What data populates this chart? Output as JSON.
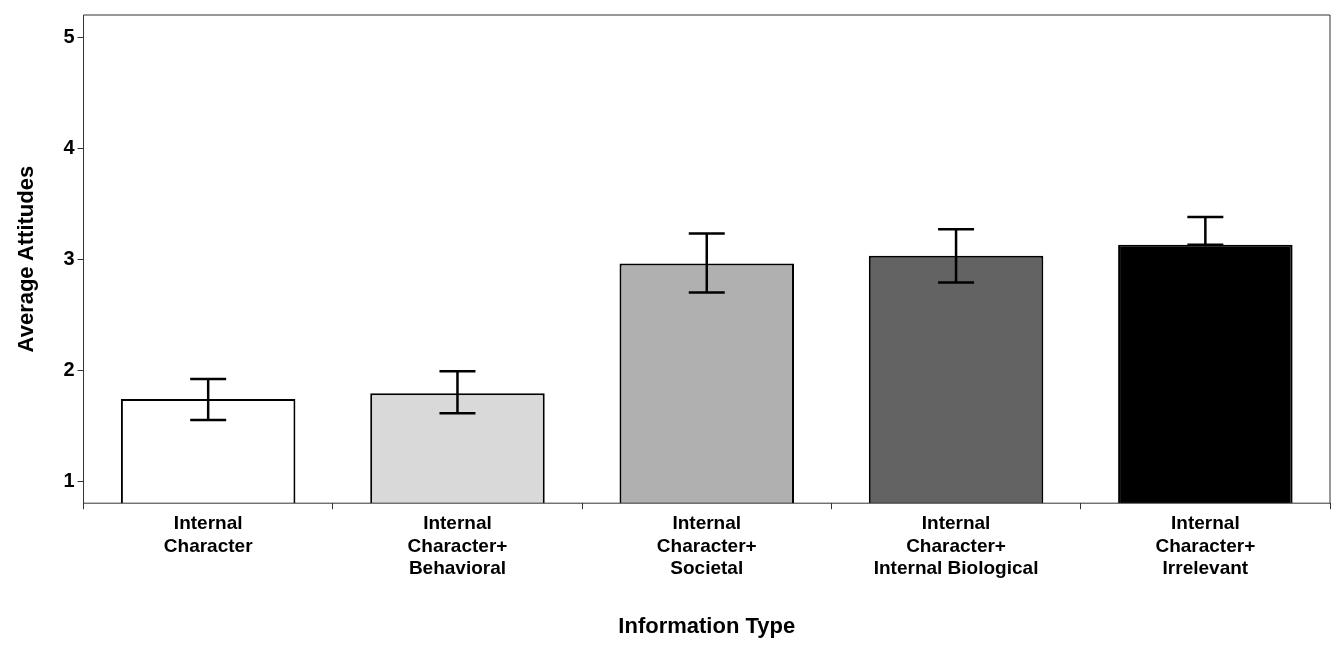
{
  "chart_data": {
    "type": "bar",
    "xlabel": "Information Type",
    "ylabel": "Average Attitudes",
    "categories": [
      "Internal\nCharacter",
      "Internal\nCharacter+\nBehavioral",
      "Internal\nCharacter+\nSocietal",
      "Internal\nCharacter+\nInternal Biological",
      "Internal\nCharacter+\nIrrelevant"
    ],
    "values": [
      1.74,
      1.79,
      2.96,
      3.03,
      3.13
    ],
    "colors": [
      "#ffffff",
      "#d9d9d9",
      "#b0b0b0",
      "#636363",
      "#000000"
    ],
    "errors": [
      [
        1.55,
        1.92
      ],
      [
        1.61,
        1.99
      ],
      [
        2.7,
        3.23
      ],
      [
        2.79,
        3.27
      ],
      [
        3.13,
        3.38
      ]
    ],
    "ylim": [
      0.8,
      5.2
    ],
    "yticks": [
      1,
      2,
      3,
      4,
      5
    ],
    "grid": false,
    "legend": false
  }
}
